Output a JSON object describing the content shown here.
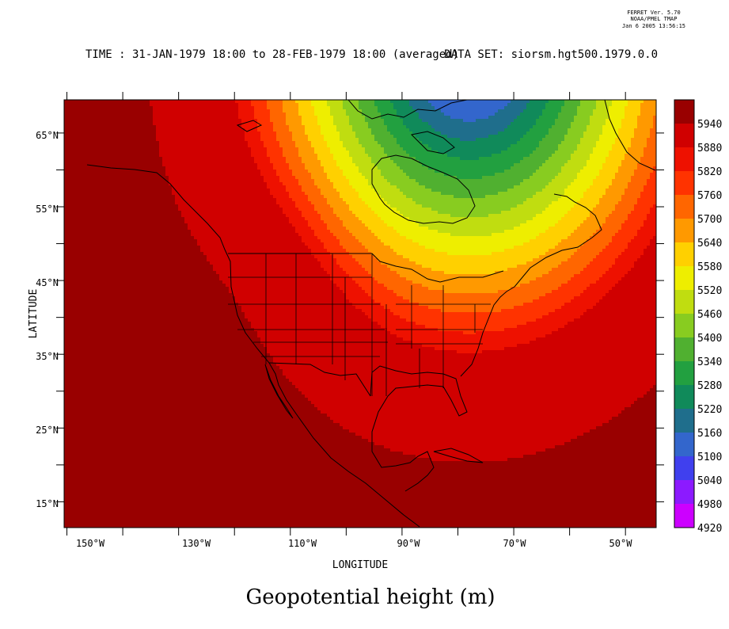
{
  "header": {
    "ferret_version": "FERRET Ver. 5.70",
    "ferret_org": "NOAA/PMEL TMAP",
    "ferret_date": "Jan  6 2005 13:56:15",
    "time_label": "TIME : 31-JAN-1979 18:00 to 28-FEB-1979 18:00 (averaged)",
    "dataset_label": "DATA SET: siorsm.hgt500.1979.0.0"
  },
  "map": {
    "title": "Geopotential height (m)",
    "xlabel": "LONGITUDE",
    "ylabel": "LATITUDE",
    "x_ticks": [
      "150°W",
      "130°W",
      "110°W",
      "90°W",
      "70°W",
      "50°W"
    ],
    "y_ticks": [
      "15°N",
      "25°N",
      "35°N",
      "45°N",
      "55°N",
      "65°N"
    ]
  },
  "chart_data": {
    "type": "heatmap",
    "variable": "Geopotential height (m)",
    "lon_range": [
      -150.5,
      -44.5
    ],
    "lat_range": [
      11.5,
      69.5
    ],
    "colorbar": {
      "levels": [
        4920,
        4980,
        5040,
        5100,
        5160,
        5220,
        5280,
        5340,
        5400,
        5460,
        5520,
        5580,
        5640,
        5700,
        5760,
        5820,
        5880,
        5940
      ],
      "colors": [
        "#cc00ff",
        "#8c1aff",
        "#4040ee",
        "#3366cc",
        "#1f6e8c",
        "#108a5a",
        "#22a040",
        "#50b030",
        "#88cc20",
        "#c0dd10",
        "#eeee00",
        "#ffd000",
        "#ff9900",
        "#ff6600",
        "#ff3300",
        "#ee1100",
        "#d00000",
        "#990000"
      ]
    }
  }
}
